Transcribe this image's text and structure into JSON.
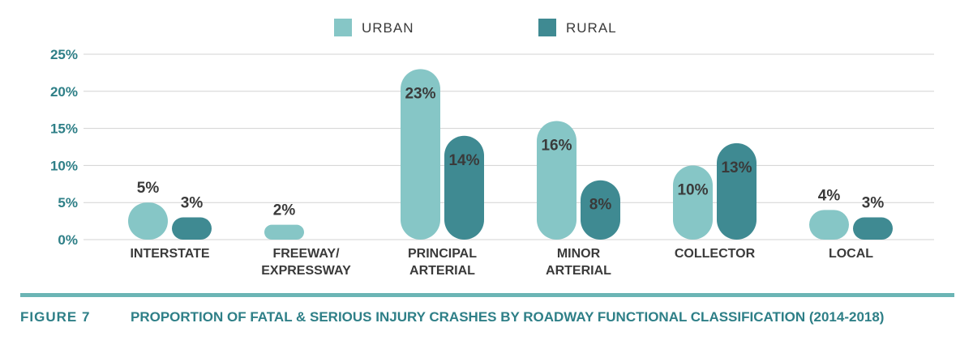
{
  "colors": {
    "urban": "#86C6C6",
    "rural": "#3F8A92",
    "axis_text": "#2E7F87",
    "label_text": "#3A3A3A",
    "grid": "#D3D3D3",
    "divider": "#6BB5B5",
    "figure_number": "#2E7F87",
    "caption_text": "#2E7F87"
  },
  "chart_data": {
    "type": "bar",
    "categories": [
      [
        "INTERSTATE"
      ],
      [
        "FREEWAY/",
        "EXPRESSWAY"
      ],
      [
        "PRINCIPAL",
        "ARTERIAL"
      ],
      [
        "MINOR",
        "ARTERIAL"
      ],
      [
        "COLLECTOR"
      ],
      [
        "LOCAL"
      ]
    ],
    "series": [
      {
        "name": "URBAN",
        "values": [
          5,
          2,
          23,
          16,
          10,
          4
        ],
        "labels": [
          "5%",
          "2%",
          "23%",
          "16%",
          "10%",
          "4%"
        ]
      },
      {
        "name": "RURAL",
        "values": [
          3,
          null,
          14,
          8,
          13,
          3
        ],
        "labels": [
          "3%",
          "",
          "14%",
          "8%",
          "13%",
          "3%"
        ]
      }
    ],
    "y_ticks": [
      "0%",
      "5%",
      "10%",
      "15%",
      "20%",
      "25%"
    ],
    "ylim": [
      0,
      25
    ],
    "grid": true,
    "legend": "top-center"
  },
  "caption": {
    "figure_number": "FIGURE 7",
    "title": "PROPORTION OF FATAL & SERIOUS INJURY CRASHES BY ROADWAY FUNCTIONAL CLASSIFICATION (2014-2018)"
  }
}
